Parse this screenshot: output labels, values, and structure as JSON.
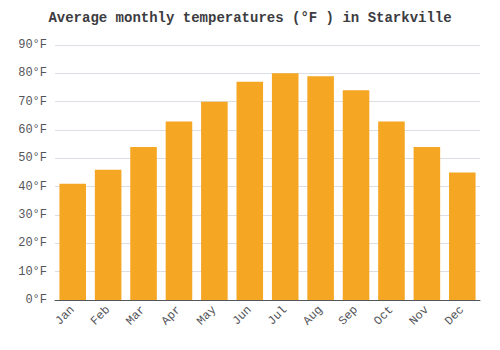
{
  "chart_data": {
    "type": "bar",
    "title": "Average monthly temperatures (°F ) in Starkville",
    "categories": [
      "Jan",
      "Feb",
      "Mar",
      "Apr",
      "May",
      "Jun",
      "Jul",
      "Aug",
      "Sep",
      "Oct",
      "Nov",
      "Dec"
    ],
    "values": [
      41,
      46,
      54,
      63,
      70,
      77,
      80,
      79,
      74,
      63,
      54,
      45
    ],
    "color": "#F5A623",
    "ylim": [
      0,
      90
    ],
    "yticks": [
      {
        "value": 0,
        "label": "0°F"
      },
      {
        "value": 10,
        "label": "10°F"
      },
      {
        "value": 20,
        "label": "20°F"
      },
      {
        "value": 30,
        "label": "30°F"
      },
      {
        "value": 40,
        "label": "40°F"
      },
      {
        "value": 50,
        "label": "50°F"
      },
      {
        "value": 60,
        "label": "60°F"
      },
      {
        "value": 70,
        "label": "70°F"
      },
      {
        "value": 80,
        "label": "80°F"
      },
      {
        "value": 90,
        "label": "90°F"
      }
    ],
    "grid": true
  }
}
